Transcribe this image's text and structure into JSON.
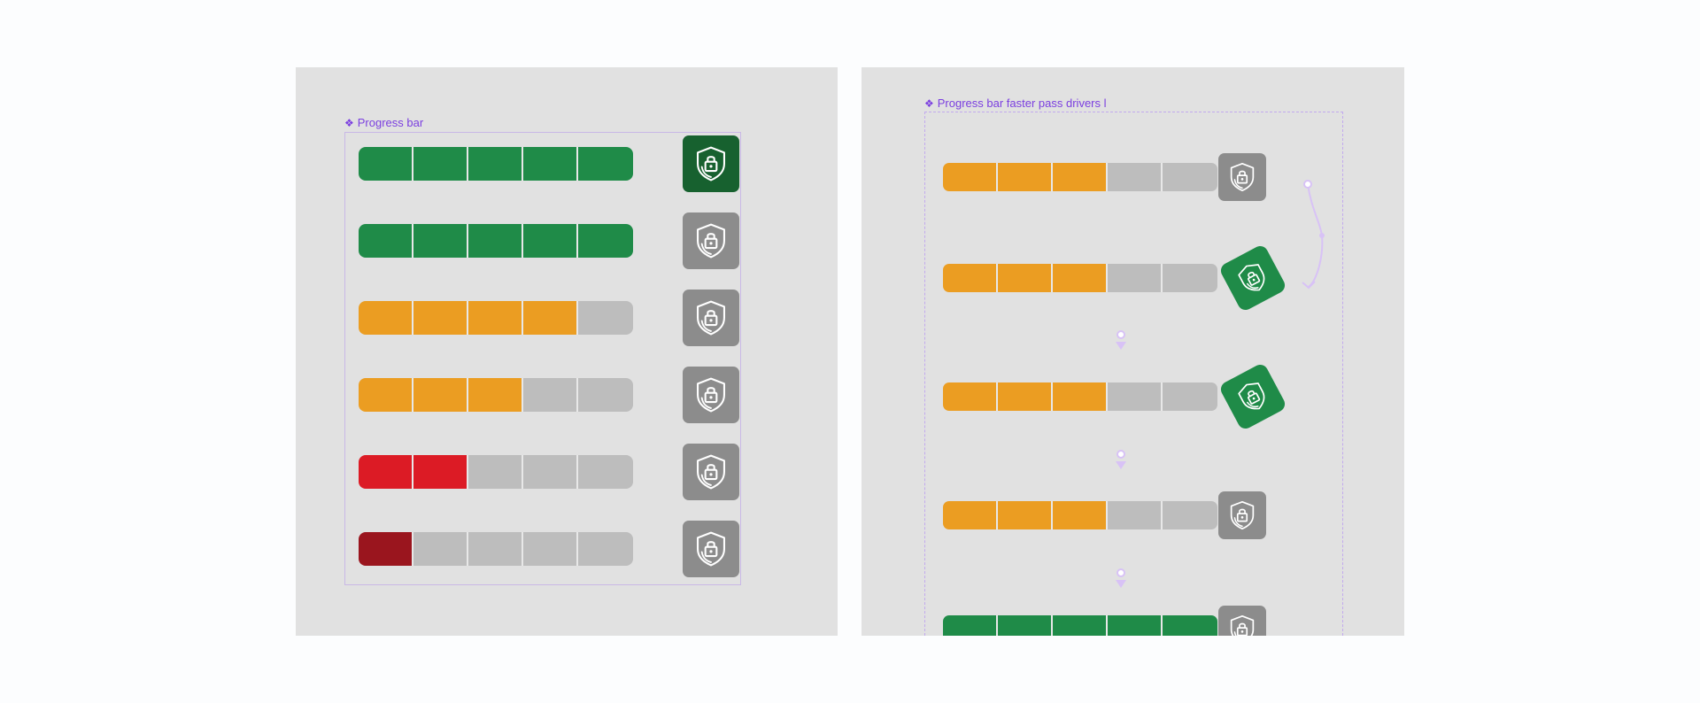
{
  "colors": {
    "green": "#1f8b48",
    "dark_green": "#17612f",
    "orange": "#eb9d22",
    "red": "#dc1b25",
    "dark_red": "#9a151e",
    "gray_segment": "#bdbdbd",
    "lock_gray": "#8c8c8c",
    "accent": "#7b3fe0",
    "frame": "#e1e1e1",
    "canvas": "#fcfdfe"
  },
  "left_panel": {
    "label_glyph": "❖",
    "label": "Progress bar",
    "rows": [
      {
        "segments": [
          "green",
          "green",
          "green",
          "green",
          "green"
        ],
        "lock": "dark_green"
      },
      {
        "segments": [
          "green",
          "green",
          "green",
          "green",
          "green"
        ],
        "lock": "gray"
      },
      {
        "segments": [
          "orange",
          "orange",
          "orange",
          "orange",
          "gray"
        ],
        "lock": "gray"
      },
      {
        "segments": [
          "orange",
          "orange",
          "orange",
          "gray",
          "gray"
        ],
        "lock": "gray"
      },
      {
        "segments": [
          "red",
          "red",
          "gray",
          "gray",
          "gray"
        ],
        "lock": "gray"
      },
      {
        "segments": [
          "dark_red",
          "gray",
          "gray",
          "gray",
          "gray"
        ],
        "lock": "gray"
      }
    ]
  },
  "right_panel": {
    "label_glyph": "❖",
    "label": "Progress bar faster pass drivers l",
    "rows": [
      {
        "segments": [
          "orange",
          "orange",
          "orange",
          "gray",
          "gray"
        ],
        "lock": "gray",
        "rotated": false
      },
      {
        "segments": [
          "orange",
          "orange",
          "orange",
          "gray",
          "gray"
        ],
        "lock": "green",
        "rotated": true
      },
      {
        "segments": [
          "orange",
          "orange",
          "orange",
          "gray",
          "gray"
        ],
        "lock": "green",
        "rotated": true
      },
      {
        "segments": [
          "orange",
          "orange",
          "orange",
          "gray",
          "gray"
        ],
        "lock": "gray",
        "rotated": false
      },
      {
        "segments": [
          "green",
          "green",
          "green",
          "green",
          "green"
        ],
        "lock": "gray",
        "rotated": false
      }
    ]
  },
  "icons": {
    "lock": "shield-lock-icon",
    "component": "component-icon",
    "connector": "prototype-connector-icon"
  }
}
